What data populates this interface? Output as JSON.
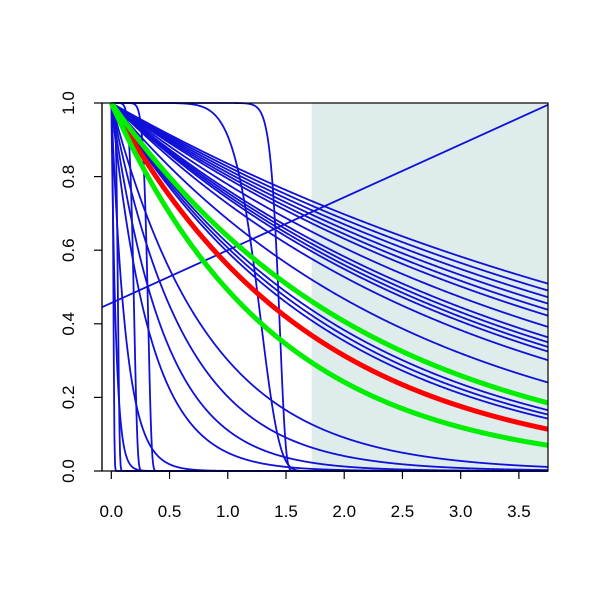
{
  "chart_data": {
    "type": "line",
    "title": "",
    "xlabel": "",
    "ylabel": "",
    "xlim": [
      -0.08,
      3.75
    ],
    "ylim": [
      0.0,
      1.0
    ],
    "x_ticks": [
      0.0,
      0.5,
      1.0,
      1.5,
      2.0,
      2.5,
      3.0,
      3.5
    ],
    "x_tick_labels": [
      "0.0",
      "0.5",
      "1.0",
      "1.5",
      "2.0",
      "2.5",
      "3.0",
      "3.5"
    ],
    "y_ticks": [
      0.0,
      0.2,
      0.4,
      0.6,
      0.8,
      1.0
    ],
    "y_tick_labels": [
      "0.0",
      "0.2",
      "0.4",
      "0.6",
      "0.8",
      "1.0"
    ],
    "grid": false,
    "legend": "none",
    "shaded_region": {
      "x_from": 1.72,
      "x_to": 3.75,
      "y_from": 0.0,
      "y_to": 1.0,
      "color": "#deecec"
    },
    "colors": {
      "blue": "#1010d8",
      "red": "#ff0000",
      "green": "#00ee00",
      "shade": "#deecec"
    },
    "highlight_series": [
      {
        "color": "red",
        "shape": "exp",
        "rate": 0.58
      },
      {
        "color": "green",
        "shape": "exp",
        "rate": 0.45
      },
      {
        "color": "green",
        "shape": "exp",
        "rate": 0.71
      }
    ],
    "background_series": [
      {
        "shape": "exp",
        "rate": 0.18
      },
      {
        "shape": "exp",
        "rate": 0.19
      },
      {
        "shape": "exp",
        "rate": 0.2
      },
      {
        "shape": "exp",
        "rate": 0.21
      },
      {
        "shape": "exp",
        "rate": 0.22
      },
      {
        "shape": "exp",
        "rate": 0.23
      },
      {
        "shape": "exp",
        "rate": 0.25
      },
      {
        "shape": "exp",
        "rate": 0.27
      },
      {
        "shape": "exp",
        "rate": 0.28
      },
      {
        "shape": "exp",
        "rate": 0.29
      },
      {
        "shape": "exp",
        "rate": 0.3
      },
      {
        "shape": "exp",
        "rate": 0.32
      },
      {
        "shape": "exp",
        "rate": 0.38
      },
      {
        "shape": "exp",
        "rate": 0.48
      },
      {
        "shape": "exp",
        "rate": 0.5
      },
      {
        "shape": "exp",
        "rate": 0.52
      },
      {
        "shape": "exp",
        "rate": 1.2
      },
      {
        "shape": "exp",
        "rate": 1.6
      },
      {
        "shape": "exp",
        "rate": 2.2
      },
      {
        "shape": "exp",
        "rate": 3.0
      },
      {
        "shape": "exp",
        "rate": 8.0
      },
      {
        "shape": "exp",
        "rate": 25.0
      },
      {
        "shape": "weibull",
        "scale": 1.45,
        "k": 30
      },
      {
        "shape": "weibull",
        "scale": 1.3,
        "k": 9
      },
      {
        "shape": "weibull",
        "scale": 0.32,
        "k": 12
      },
      {
        "shape": "weibull",
        "scale": 0.2,
        "k": 8
      },
      {
        "shape": "weibull",
        "scale": 0.06,
        "k": 5
      },
      {
        "shape": "weibull",
        "scale": 0.02,
        "k": 3
      },
      {
        "shape": "line",
        "from": [
          -0.08,
          0.445
        ],
        "to": [
          3.75,
          0.995
        ]
      }
    ]
  }
}
